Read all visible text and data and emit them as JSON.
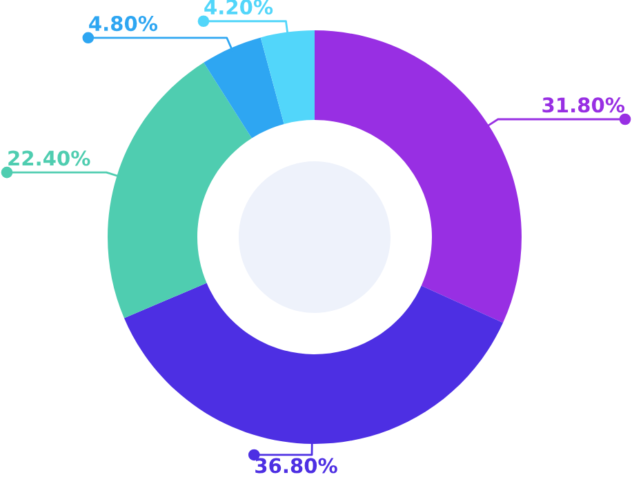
{
  "chart_data": {
    "type": "donut",
    "categories": [
      null,
      null,
      null,
      null,
      null
    ],
    "values": [
      31.8,
      36.8,
      22.4,
      4.8,
      4.2
    ],
    "value_labels": [
      "31.80%",
      "36.80%",
      "22.40%",
      "4.80%",
      "4.20%"
    ],
    "colors": [
      "#982fe3",
      "#4d2fe3",
      "#4fcdb0",
      "#2ea6f2",
      "#52d6fa"
    ]
  }
}
